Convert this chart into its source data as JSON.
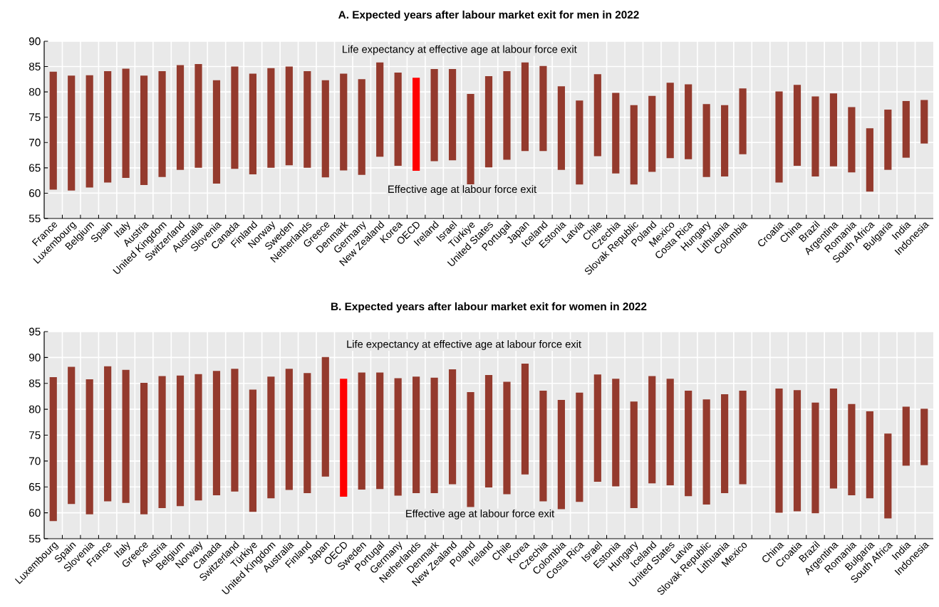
{
  "chart_data": [
    {
      "type": "bar",
      "title": "A. Expected years after labour market exit for men in 2022",
      "categories": [
        "France",
        "Luxembourg",
        "Belgium",
        "Spain",
        "Italy",
        "Austria",
        "United Kingdom",
        "Switzerland",
        "Australia",
        "Slovenia",
        "Canada",
        "Finland",
        "Norway",
        "Sweden",
        "Netherlands",
        "Greece",
        "Denmark",
        "Germany",
        "New Zealand",
        "Korea",
        "OECD",
        "Ireland",
        "Israel",
        "Türkiye",
        "United States",
        "Portugal",
        "Japan",
        "Iceland",
        "Estonia",
        "Latvia",
        "Chile",
        "Czechia",
        "Slovak Republic",
        "Poland",
        "Mexico",
        "Costa Rica",
        "Hungary",
        "Lithuania",
        "Colombia",
        null,
        "Croatia",
        "China",
        "Brazil",
        "Argentina",
        "Romania",
        "South Africa",
        "Bulgaria",
        "India",
        "Indonesia"
      ],
      "base": [
        60.7,
        60.5,
        61.1,
        62.1,
        63.0,
        61.6,
        63.2,
        64.6,
        65.0,
        61.9,
        64.8,
        63.7,
        65.0,
        65.5,
        65.0,
        63.1,
        64.5,
        63.6,
        67.2,
        65.4,
        64.4,
        66.3,
        66.5,
        61.6,
        65.1,
        66.6,
        68.3,
        68.3,
        64.6,
        61.7,
        67.3,
        63.9,
        61.7,
        64.2,
        66.9,
        66.7,
        63.2,
        63.3,
        67.7,
        null,
        62.1,
        65.4,
        63.3,
        65.3,
        64.1,
        60.3,
        64.6,
        67.0,
        69.8
      ],
      "values": [
        23.3,
        22.7,
        22.2,
        22.0,
        21.6,
        21.6,
        20.9,
        20.7,
        20.5,
        20.4,
        20.2,
        19.9,
        19.7,
        19.5,
        19.1,
        19.2,
        19.1,
        18.9,
        18.6,
        18.4,
        18.4,
        18.2,
        18.0,
        18.0,
        18.0,
        17.5,
        17.5,
        16.8,
        16.5,
        16.6,
        16.2,
        15.9,
        15.7,
        15.0,
        14.9,
        14.8,
        14.4,
        14.1,
        13.0,
        null,
        18.0,
        16.0,
        15.8,
        14.4,
        12.9,
        12.5,
        11.9,
        11.2,
        8.6
      ],
      "colors": [
        "#943a2d",
        "#943a2d",
        "#943a2d",
        "#943a2d",
        "#943a2d",
        "#943a2d",
        "#943a2d",
        "#943a2d",
        "#943a2d",
        "#943a2d",
        "#943a2d",
        "#943a2d",
        "#943a2d",
        "#943a2d",
        "#943a2d",
        "#943a2d",
        "#943a2d",
        "#943a2d",
        "#943a2d",
        "#943a2d",
        "#ff0000",
        "#943a2d",
        "#943a2d",
        "#943a2d",
        "#943a2d",
        "#943a2d",
        "#943a2d",
        "#943a2d",
        "#943a2d",
        "#943a2d",
        "#943a2d",
        "#943a2d",
        "#943a2d",
        "#943a2d",
        "#943a2d",
        "#943a2d",
        "#943a2d",
        "#943a2d",
        "#943a2d",
        "#943a2d",
        "#943a2d",
        "#943a2d",
        "#943a2d",
        "#943a2d",
        "#943a2d",
        "#943a2d",
        "#943a2d",
        "#943a2d",
        "#943a2d"
      ],
      "ylim": [
        55,
        90
      ],
      "yticks": [
        55,
        60,
        65,
        70,
        75,
        80,
        85,
        90
      ],
      "grid": true,
      "annotations": [
        "Life expectancy at effective age at labour force exit",
        "Effective age at labour force exit"
      ]
    },
    {
      "type": "bar",
      "title": "B. Expected years after labour market exit for women in 2022",
      "categories": [
        "Luxembourg",
        "Spain",
        "Slovenia",
        "France",
        "Italy",
        "Greece",
        "Austria",
        "Belgium",
        "Norway",
        "Canada",
        "Switzerland",
        "Türkiye",
        "United Kingdom",
        "Australia",
        "Finland",
        "Japan",
        "OECD",
        "Sweden",
        "Portugal",
        "Germany",
        "Netherlands",
        "Denmark",
        "New Zealand",
        "Poland",
        "Ireland",
        "Chile",
        "Korea",
        "Czechia",
        "Colombia",
        "Costa Rica",
        "Israel",
        "Estonia",
        "Hungary",
        "Iceland",
        "United States",
        "Latvia",
        "Slovak Republic",
        "Lithuania",
        "Mexico",
        null,
        "China",
        "Croatia",
        "Brazil",
        "Argentina",
        "Romania",
        "Bulgaria",
        "South Africa",
        "India",
        "Indonesia"
      ],
      "base": [
        58.4,
        61.7,
        59.7,
        62.2,
        61.9,
        59.7,
        60.9,
        61.3,
        62.4,
        63.4,
        64.1,
        60.2,
        62.8,
        64.4,
        63.8,
        67.0,
        63.1,
        64.5,
        64.6,
        63.3,
        63.8,
        63.8,
        65.5,
        61.1,
        64.9,
        63.6,
        67.4,
        62.2,
        60.7,
        62.1,
        66.0,
        65.1,
        60.9,
        65.7,
        65.3,
        63.2,
        61.6,
        63.8,
        65.5,
        null,
        60.0,
        60.3,
        59.9,
        64.7,
        63.4,
        62.8,
        58.9,
        69.1,
        69.2
      ],
      "values": [
        27.8,
        26.5,
        26.1,
        26.1,
        25.7,
        25.4,
        25.5,
        25.2,
        24.4,
        24.0,
        23.7,
        23.6,
        23.5,
        23.4,
        23.2,
        23.1,
        22.8,
        22.6,
        22.5,
        22.7,
        22.5,
        22.3,
        22.2,
        22.2,
        21.7,
        21.7,
        21.4,
        21.4,
        21.1,
        21.1,
        20.7,
        20.8,
        20.6,
        20.7,
        20.6,
        20.4,
        20.3,
        19.1,
        18.1,
        null,
        24.0,
        23.4,
        21.4,
        19.3,
        17.6,
        16.8,
        16.4,
        11.4,
        10.9
      ],
      "colors": [
        "#943a2d",
        "#943a2d",
        "#943a2d",
        "#943a2d",
        "#943a2d",
        "#943a2d",
        "#943a2d",
        "#943a2d",
        "#943a2d",
        "#943a2d",
        "#943a2d",
        "#943a2d",
        "#943a2d",
        "#943a2d",
        "#943a2d",
        "#943a2d",
        "#ff0000",
        "#943a2d",
        "#943a2d",
        "#943a2d",
        "#943a2d",
        "#943a2d",
        "#943a2d",
        "#943a2d",
        "#943a2d",
        "#943a2d",
        "#943a2d",
        "#943a2d",
        "#943a2d",
        "#943a2d",
        "#943a2d",
        "#943a2d",
        "#943a2d",
        "#943a2d",
        "#943a2d",
        "#943a2d",
        "#943a2d",
        "#943a2d",
        "#943a2d",
        "#943a2d",
        "#943a2d",
        "#943a2d",
        "#943a2d",
        "#943a2d",
        "#943a2d",
        "#943a2d",
        "#943a2d",
        "#943a2d",
        "#943a2d"
      ],
      "ylim": [
        55,
        95
      ],
      "yticks": [
        55,
        60,
        65,
        70,
        75,
        80,
        85,
        90,
        95
      ],
      "grid": true,
      "annotations": [
        "Life expectancy at effective age at labour force exit",
        "Effective age at labour force exit"
      ]
    }
  ]
}
